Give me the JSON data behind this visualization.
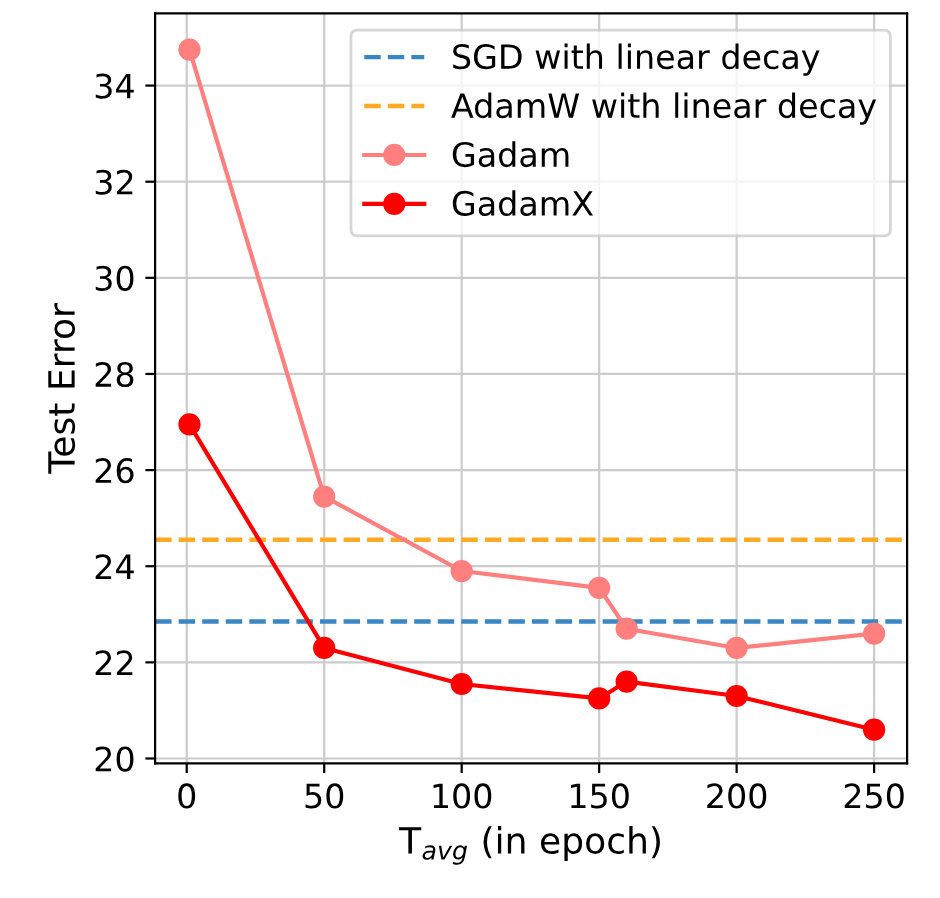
{
  "chart_data": {
    "type": "line",
    "xlabel": "T$_{avg}$ (in epoch)",
    "ylabel": "Test Error",
    "x": [
      1,
      50,
      100,
      150,
      160,
      200,
      250
    ],
    "series": [
      {
        "name": "Gadam",
        "color": "#ff7f7f",
        "values": [
          34.75,
          25.45,
          23.9,
          23.55,
          22.7,
          22.3,
          22.6
        ]
      },
      {
        "name": "GadamX",
        "color": "#ff0000",
        "values": [
          26.95,
          22.3,
          21.55,
          21.25,
          21.6,
          21.3,
          20.6
        ]
      }
    ],
    "ref_lines": [
      {
        "axis": "y",
        "value": 22.85,
        "label": "SGD with linear decay",
        "color": "#3a86c2",
        "line_style": "dashed"
      },
      {
        "axis": "y",
        "value": 24.55,
        "label": "AdamW with linear decay",
        "color": "#ffaa22",
        "line_style": "dashed"
      }
    ],
    "xlim": [
      -11.5,
      262
    ],
    "ylim": [
      19.9,
      35.5
    ],
    "xticks": [
      0,
      50,
      100,
      150,
      200,
      250
    ],
    "yticks": [
      20,
      22,
      24,
      26,
      28,
      30,
      32,
      34
    ],
    "grid": true,
    "legend": "top right",
    "marker": "circle"
  }
}
